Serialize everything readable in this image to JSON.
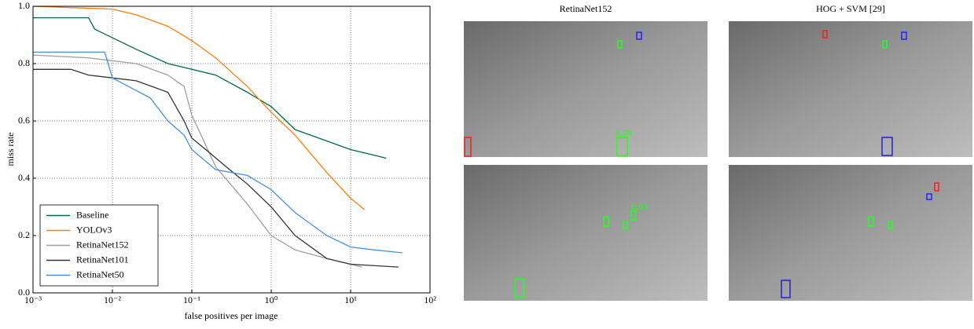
{
  "chart_data": {
    "type": "line",
    "xlabel": "false positives per image",
    "ylabel": "miss rate",
    "xscale": "log",
    "grid": true,
    "legend": "lower left",
    "xlim": [
      0.001,
      100
    ],
    "xticks": [
      {
        "value": 0.001,
        "label": "10⁻³"
      },
      {
        "value": 0.01,
        "label": "10⁻²"
      },
      {
        "value": 0.1,
        "label": "10⁻¹"
      },
      {
        "value": 1,
        "label": "10⁰"
      },
      {
        "value": 10,
        "label": "10¹"
      },
      {
        "value": 100,
        "label": "10²"
      }
    ],
    "ylim": [
      0,
      1
    ],
    "yticks": [
      {
        "value": 0,
        "label": "0.0"
      },
      0.2,
      0.4,
      0.6,
      0.8,
      {
        "value": 1,
        "label": "1.0"
      }
    ],
    "series": [
      {
        "name": "Baseline",
        "color": "#00684b",
        "x": [
          0.001,
          0.005,
          0.006,
          0.01,
          0.02,
          0.05,
          0.1,
          0.2,
          0.5,
          1,
          2,
          5,
          10,
          20,
          28
        ],
        "values": [
          0.96,
          0.96,
          0.92,
          0.89,
          0.85,
          0.8,
          0.78,
          0.76,
          0.7,
          0.65,
          0.57,
          0.53,
          0.5,
          0.48,
          0.47
        ]
      },
      {
        "name": "YOLOv3",
        "color": "#ff7f0e",
        "x": [
          0.001,
          0.01,
          0.02,
          0.05,
          0.1,
          0.2,
          0.5,
          1,
          2,
          5,
          10,
          15
        ],
        "values": [
          1.0,
          0.99,
          0.97,
          0.93,
          0.88,
          0.82,
          0.72,
          0.63,
          0.55,
          0.42,
          0.33,
          0.29
        ]
      },
      {
        "name": "RetinaNet152",
        "color": "#a0a0a0",
        "x": [
          0.001,
          0.005,
          0.02,
          0.05,
          0.08,
          0.1,
          0.2,
          0.5,
          1,
          2,
          5,
          14
        ],
        "values": [
          0.83,
          0.82,
          0.8,
          0.76,
          0.72,
          0.62,
          0.44,
          0.31,
          0.2,
          0.15,
          0.12,
          0.09
        ]
      },
      {
        "name": "RetinaNet101",
        "color": "#333333",
        "x": [
          0.001,
          0.003,
          0.005,
          0.02,
          0.05,
          0.08,
          0.1,
          0.15,
          0.3,
          0.5,
          1,
          2,
          5,
          10,
          40
        ],
        "values": [
          0.78,
          0.78,
          0.76,
          0.74,
          0.7,
          0.6,
          0.54,
          0.5,
          0.43,
          0.38,
          0.3,
          0.2,
          0.12,
          0.1,
          0.09
        ]
      },
      {
        "name": "RetinaNet50",
        "color": "#4a90d0",
        "x": [
          0.001,
          0.008,
          0.01,
          0.03,
          0.05,
          0.08,
          0.1,
          0.2,
          0.5,
          1,
          2,
          5,
          10,
          20,
          45
        ],
        "values": [
          0.84,
          0.84,
          0.75,
          0.68,
          0.6,
          0.55,
          0.5,
          0.43,
          0.41,
          0.36,
          0.28,
          0.2,
          0.16,
          0.15,
          0.14
        ]
      }
    ]
  },
  "panels": {
    "titles": [
      "RetinaNet152",
      "HOG + SVM [29]"
    ],
    "box_labels": [
      "0.99",
      "0.93"
    ]
  }
}
